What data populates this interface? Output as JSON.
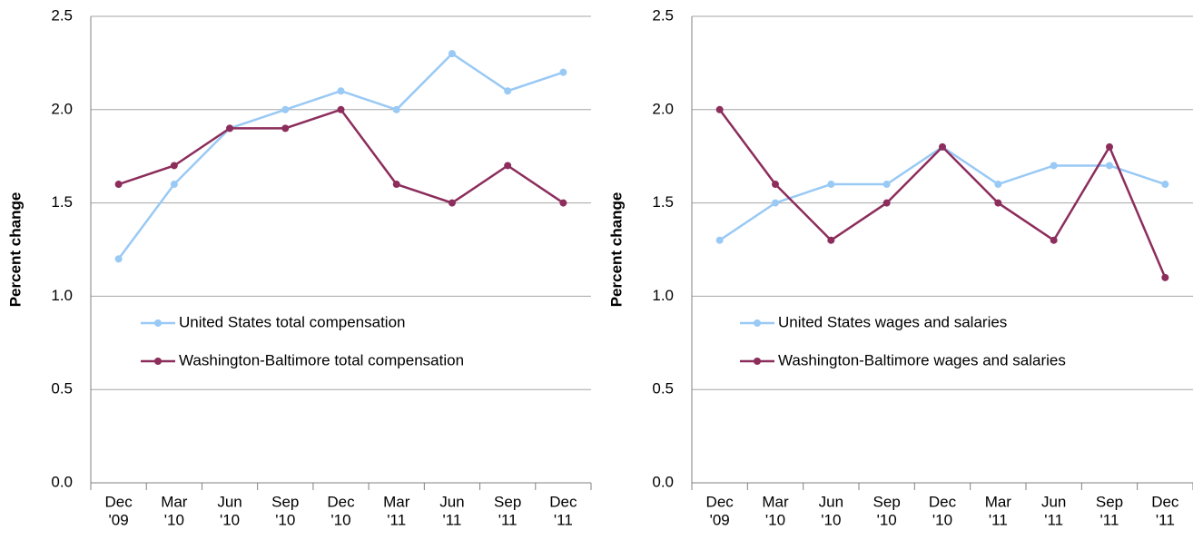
{
  "chart_data": [
    {
      "type": "line",
      "y_label": "Percent change",
      "categories": [
        [
          "Dec",
          "'09"
        ],
        [
          "Mar",
          "'10"
        ],
        [
          "Jun",
          "'10"
        ],
        [
          "Sep",
          "'10"
        ],
        [
          "Dec",
          "'10"
        ],
        [
          "Mar",
          "'11"
        ],
        [
          "Jun",
          "'11"
        ],
        [
          "Sep",
          "'11"
        ],
        [
          "Dec",
          "'11"
        ]
      ],
      "series": [
        {
          "name": "United States total compensation",
          "color": "#99c9f5",
          "values": [
            1.2,
            1.6,
            1.9,
            2.0,
            2.1,
            2.0,
            2.3,
            2.1,
            2.2
          ]
        },
        {
          "name": "Washington-Baltimore total compensation",
          "color": "#8c2d5c",
          "values": [
            1.6,
            1.7,
            1.9,
            1.9,
            2.0,
            1.6,
            1.5,
            1.7,
            1.5
          ]
        }
      ],
      "ylim": [
        0,
        2.5
      ],
      "yticks": [
        {
          "value": 0,
          "label": "0.0"
        },
        0.5,
        {
          "value": 1,
          "label": "1.0"
        },
        1.5,
        {
          "value": 2,
          "label": "2.0"
        },
        2.5
      ],
      "grid": true
    },
    {
      "type": "line",
      "y_label": "Percent change",
      "categories": [
        [
          "Dec",
          "'09"
        ],
        [
          "Mar",
          "'10"
        ],
        [
          "Jun",
          "'10"
        ],
        [
          "Sep",
          "'10"
        ],
        [
          "Dec",
          "'10"
        ],
        [
          "Mar",
          "'11"
        ],
        [
          "Jun",
          "'11"
        ],
        [
          "Sep",
          "'11"
        ],
        [
          "Dec",
          "'11"
        ]
      ],
      "series": [
        {
          "name": "United States wages and salaries",
          "color": "#99c9f5",
          "values": [
            1.3,
            1.5,
            1.6,
            1.6,
            1.8,
            1.6,
            1.7,
            1.7,
            1.6
          ]
        },
        {
          "name": "Washington-Baltimore wages and salaries",
          "color": "#8c2d5c",
          "values": [
            2.0,
            1.6,
            1.3,
            1.5,
            1.8,
            1.5,
            1.3,
            1.8,
            1.1
          ]
        }
      ],
      "ylim": [
        0,
        2.5
      ],
      "yticks": [
        {
          "value": 0,
          "label": "0.0"
        },
        0.5,
        {
          "value": 1,
          "label": "1.0"
        },
        1.5,
        {
          "value": 2,
          "label": "2.0"
        },
        2.5
      ],
      "grid": true
    }
  ]
}
